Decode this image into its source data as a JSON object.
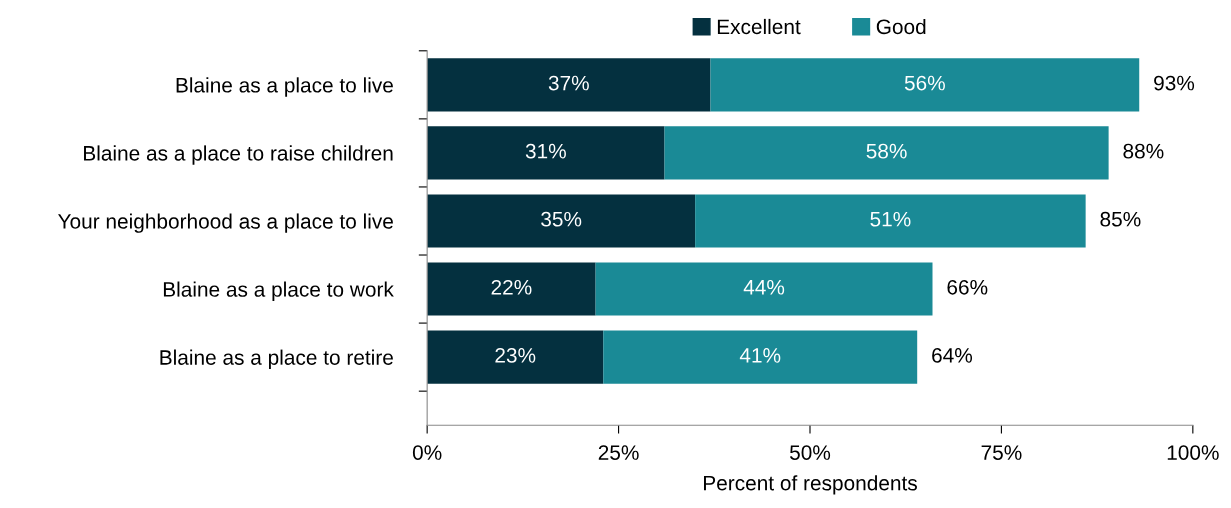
{
  "chart_data": {
    "type": "bar",
    "orientation": "horizontal",
    "stacked": true,
    "xlabel": "Percent of respondents",
    "categories": [
      "Blaine as a place to live",
      "Blaine as a place to raise children",
      "Your neighborhood as a place to live",
      "Blaine as a place to work",
      "Blaine as a place to retire"
    ],
    "series": [
      {
        "name": "Excellent",
        "color": "#04303f",
        "values": [
          37,
          31,
          35,
          22,
          23
        ],
        "value_labels": [
          "37%",
          "31%",
          "35%",
          "22%",
          "23%"
        ]
      },
      {
        "name": "Good",
        "color": "#1a8a96",
        "values": [
          56,
          58,
          51,
          44,
          41
        ],
        "value_labels": [
          "56%",
          "58%",
          "51%",
          "44%",
          "41%"
        ]
      }
    ],
    "totals": [
      "93%",
      "88%",
      "85%",
      "66%",
      "64%"
    ],
    "xlim": [
      0,
      100
    ],
    "xticks": [
      {
        "value": 0,
        "label": "0%"
      },
      {
        "value": 25,
        "label": "25%"
      },
      {
        "value": 50,
        "label": "50%"
      },
      {
        "value": 75,
        "label": "75%"
      },
      {
        "value": 100,
        "label": "100%"
      }
    ],
    "grid": false,
    "legend": "top"
  }
}
